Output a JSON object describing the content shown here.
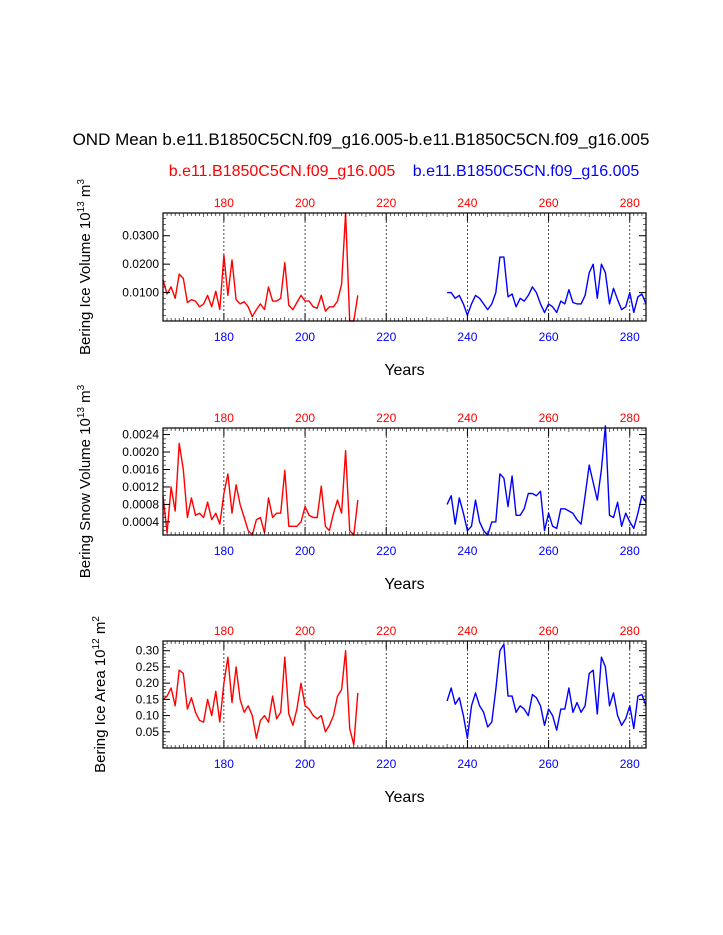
{
  "title": "OND Mean b.e11.B1850C5CN.f09_g16.005-b.e11.B1850C5CN.f09_g16.005",
  "case1_label": "b.e11.B1850C5CN.f09_g16.005",
  "case2_label": "b.e11.B1850C5CN.f09_g16.005",
  "colors": {
    "case1": "#ff0000",
    "case2": "#0000ff",
    "axis": "#000000",
    "grid": "#000000"
  },
  "chart_data": [
    {
      "type": "line",
      "panel": "ice-volume",
      "ylabel_parts": {
        "main": "Bering Ice Volume 10",
        "sup1": "13",
        "mid": " m",
        "sup2": "3"
      },
      "xlabel": "Years",
      "xlim": [
        165,
        284
      ],
      "ylim": [
        0.0,
        0.038
      ],
      "yticks": [
        0.01,
        0.02,
        0.03
      ],
      "ytick_labels": [
        "0.0100",
        "0.0200",
        "0.0300"
      ],
      "minor_y_step": 0.002,
      "xticks": [
        180,
        200,
        220,
        240,
        260,
        280
      ],
      "xtick_labels_top": [
        "180",
        "200",
        "220",
        "240",
        "260",
        "280"
      ],
      "xtick_labels_bottom": [
        "180",
        "200",
        "220",
        "240",
        "260",
        "280"
      ],
      "series": [
        {
          "name": "b.e11.B1850C5CN.f09_g16.005",
          "color": "#ff0000",
          "start_year": 165,
          "values": [
            0.0145,
            0.0095,
            0.012,
            0.008,
            0.0165,
            0.015,
            0.0065,
            0.0075,
            0.007,
            0.005,
            0.006,
            0.009,
            0.005,
            0.0105,
            0.004,
            0.0232,
            0.009,
            0.0215,
            0.0075,
            0.006,
            0.0068,
            0.005,
            0.0015,
            0.004,
            0.006,
            0.004,
            0.012,
            0.007,
            0.007,
            0.008,
            0.0205,
            0.0055,
            0.004,
            0.0065,
            0.009,
            0.007,
            0.007,
            0.005,
            0.0045,
            0.009,
            0.0035,
            0.005,
            0.005,
            0.007,
            0.013,
            0.038,
            0.0,
            0.0,
            0.009
          ]
        },
        {
          "name": "b.e11.B1850C5CN.f09_g16.005",
          "color": "#0000ff",
          "start_year": 235,
          "values": [
            0.01,
            0.01,
            0.008,
            0.009,
            0.006,
            0.002,
            0.006,
            0.009,
            0.008,
            0.006,
            0.004,
            0.006,
            0.01,
            0.0225,
            0.0225,
            0.0085,
            0.0095,
            0.005,
            0.008,
            0.007,
            0.009,
            0.012,
            0.01,
            0.006,
            0.003,
            0.006,
            0.005,
            0.003,
            0.007,
            0.006,
            0.011,
            0.0065,
            0.006,
            0.006,
            0.009,
            0.017,
            0.02,
            0.008,
            0.02,
            0.017,
            0.006,
            0.0115,
            0.0075,
            0.004,
            0.005,
            0.01,
            0.003,
            0.0085,
            0.0095,
            0.006
          ]
        }
      ]
    },
    {
      "type": "line",
      "panel": "snow-volume",
      "ylabel_parts": {
        "main": "Bering Snow Volume 10",
        "sup1": "13",
        "mid": " m",
        "sup2": "3"
      },
      "xlabel": "Years",
      "xlim": [
        165,
        284
      ],
      "ylim": [
        0.0001,
        0.00255
      ],
      "yticks": [
        0.0004,
        0.0008,
        0.0012,
        0.0016,
        0.002,
        0.0024
      ],
      "ytick_labels": [
        "0.0004",
        "0.0008",
        "0.0012",
        "0.0016",
        "0.0020",
        "0.0024"
      ],
      "minor_y_step": 0.0001,
      "xticks": [
        180,
        200,
        220,
        240,
        260,
        280
      ],
      "xtick_labels_top": [
        "180",
        "200",
        "220",
        "240",
        "260",
        "280"
      ],
      "xtick_labels_bottom": [
        "180",
        "200",
        "220",
        "240",
        "260",
        "280"
      ],
      "series": [
        {
          "name": "b.e11.B1850C5CN.f09_g16.005",
          "color": "#ff0000",
          "start_year": 165,
          "values": [
            0.001,
            0.00015,
            0.0012,
            0.00065,
            0.0022,
            0.0016,
            0.0005,
            0.00095,
            0.00055,
            0.0006,
            0.0005,
            0.00085,
            0.00045,
            0.0006,
            0.00035,
            0.00105,
            0.0015,
            0.0006,
            0.00125,
            0.0008,
            0.0005,
            0.0002,
            0.0001,
            0.00045,
            0.0005,
            0.00015,
            0.00095,
            0.0005,
            0.0006,
            0.0006,
            0.00158,
            0.0003,
            0.0003,
            0.0003,
            0.0004,
            0.00075,
            0.00055,
            0.0005,
            0.0005,
            0.00122,
            0.0003,
            0.0002,
            0.0006,
            0.0009,
            0.0006,
            0.00203,
            0.0002,
            0.0001,
            0.0009
          ]
        },
        {
          "name": "b.e11.B1850C5CN.f09_g16.005",
          "color": "#0000ff",
          "start_year": 235,
          "values": [
            0.0008,
            0.001,
            0.00035,
            0.00095,
            0.0006,
            0.0002,
            0.0003,
            0.0009,
            0.0004,
            0.0002,
            0.0001,
            0.0004,
            0.0004,
            0.0015,
            0.0014,
            0.00075,
            0.00145,
            0.00055,
            0.00055,
            0.0007,
            0.00105,
            0.00105,
            0.001,
            0.0011,
            0.0002,
            0.0006,
            0.0003,
            0.00025,
            0.0007,
            0.0007,
            0.00065,
            0.0006,
            0.00045,
            0.00035,
            0.001,
            0.0017,
            0.0013,
            0.0009,
            0.0016,
            0.0026,
            0.00055,
            0.0005,
            0.00085,
            0.0003,
            0.0006,
            0.0004,
            0.00025,
            0.0006,
            0.001,
            0.00085
          ]
        }
      ]
    },
    {
      "type": "line",
      "panel": "ice-area",
      "ylabel_parts": {
        "main": "Bering Ice Area 10",
        "sup1": "12",
        "mid": " m",
        "sup2": "2"
      },
      "xlabel": "Years",
      "xlim": [
        165,
        284
      ],
      "ylim": [
        0.0,
        0.33
      ],
      "yticks": [
        0.05,
        0.1,
        0.15,
        0.2,
        0.25,
        0.3
      ],
      "ytick_labels": [
        "0.05",
        "0.10",
        "0.15",
        "0.20",
        "0.25",
        "0.30"
      ],
      "minor_y_step": 0.01,
      "xticks": [
        180,
        200,
        220,
        240,
        260,
        280
      ],
      "xtick_labels_top": [
        "180",
        "200",
        "220",
        "240",
        "260",
        "280"
      ],
      "xtick_labels_bottom": [
        "180",
        "200",
        "220",
        "240",
        "260",
        "280"
      ],
      "series": [
        {
          "name": "b.e11.B1850C5CN.f09_g16.005",
          "color": "#ff0000",
          "start_year": 165,
          "values": [
            0.15,
            0.16,
            0.185,
            0.13,
            0.24,
            0.23,
            0.12,
            0.155,
            0.11,
            0.085,
            0.08,
            0.15,
            0.1,
            0.175,
            0.08,
            0.2,
            0.28,
            0.14,
            0.25,
            0.15,
            0.11,
            0.13,
            0.1,
            0.03,
            0.085,
            0.1,
            0.08,
            0.16,
            0.09,
            0.11,
            0.28,
            0.105,
            0.07,
            0.12,
            0.2,
            0.13,
            0.12,
            0.1,
            0.09,
            0.1,
            0.05,
            0.07,
            0.1,
            0.16,
            0.18,
            0.3,
            0.06,
            0.01,
            0.17
          ]
        },
        {
          "name": "b.e11.B1850C5CN.f09_g16.005",
          "color": "#0000ff",
          "start_year": 235,
          "values": [
            0.145,
            0.185,
            0.135,
            0.155,
            0.1,
            0.03,
            0.13,
            0.17,
            0.13,
            0.11,
            0.065,
            0.08,
            0.18,
            0.3,
            0.32,
            0.16,
            0.16,
            0.11,
            0.13,
            0.12,
            0.1,
            0.165,
            0.155,
            0.13,
            0.07,
            0.12,
            0.1,
            0.055,
            0.12,
            0.12,
            0.185,
            0.11,
            0.14,
            0.11,
            0.13,
            0.23,
            0.24,
            0.105,
            0.28,
            0.25,
            0.13,
            0.17,
            0.1,
            0.07,
            0.09,
            0.13,
            0.06,
            0.16,
            0.165,
            0.13
          ]
        }
      ]
    }
  ]
}
